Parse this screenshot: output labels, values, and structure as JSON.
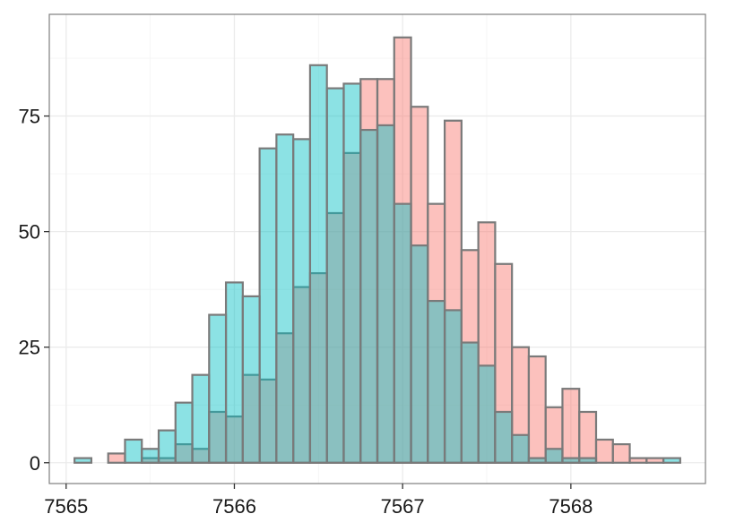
{
  "chart_data": {
    "type": "bar",
    "xlim": [
      7564.9,
      7568.8
    ],
    "ylim": [
      -4.5,
      97
    ],
    "x_ticks": [
      7565,
      7566,
      7567,
      7568
    ],
    "x_tick_labels": [
      "7565",
      "7566",
      "7567",
      "7568"
    ],
    "y_ticks": [
      0,
      25,
      50,
      75
    ],
    "y_tick_labels": [
      "0",
      "25",
      "50",
      "75"
    ],
    "grid": true,
    "legend": "none",
    "bin_width": 0.1,
    "bin_starts": [
      7565.05,
      7565.15,
      7565.25,
      7565.35,
      7565.45,
      7565.55,
      7565.65,
      7565.75,
      7565.85,
      7565.95,
      7566.05,
      7566.15,
      7566.25,
      7566.35,
      7566.45,
      7566.55,
      7566.65,
      7566.75,
      7566.85,
      7566.95,
      7567.05,
      7567.15,
      7567.25,
      7567.35,
      7567.45,
      7567.55,
      7567.65,
      7567.75,
      7567.85,
      7567.95,
      7568.05,
      7568.15,
      7568.25,
      7568.35,
      7568.45,
      7568.55
    ],
    "series": [
      {
        "color": "#F8766D",
        "values": [
          0,
          0,
          2,
          0,
          1,
          1,
          4,
          3,
          11,
          10,
          19,
          18,
          28,
          38,
          41,
          54,
          67,
          83,
          83,
          92,
          77,
          56,
          74,
          46,
          52,
          43,
          25,
          23,
          12,
          16,
          11,
          5,
          4,
          1,
          1,
          0
        ]
      },
      {
        "color": "#00BFC4",
        "values": [
          1,
          0,
          0,
          5,
          3,
          7,
          13,
          19,
          32,
          39,
          36,
          68,
          71,
          70,
          86,
          81,
          82,
          72,
          73,
          56,
          47,
          35,
          33,
          26,
          21,
          11,
          6,
          1,
          3,
          1,
          1,
          0,
          0,
          0,
          0,
          1
        ]
      }
    ]
  }
}
